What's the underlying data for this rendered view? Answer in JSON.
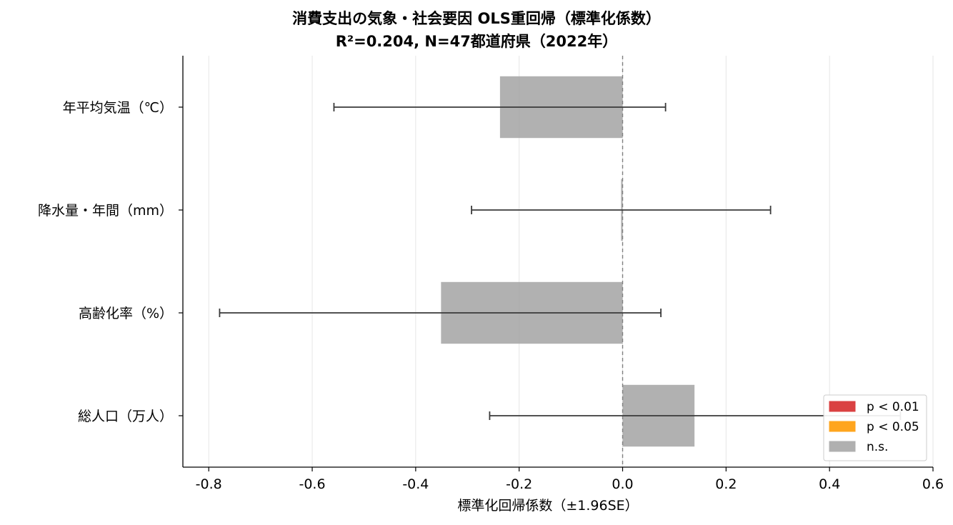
{
  "chart_data": {
    "type": "bar",
    "orientation": "horizontal",
    "title": "消費支出の気象・社会要因 OLS重回帰（標準化係数）",
    "subtitle": "R²=0.204, N=47都道府県（2022年）",
    "xlabel": "標準化回帰係数（±1.96SE）",
    "ylabel": "",
    "xlim": [
      -0.85,
      0.6
    ],
    "xticks": [
      -0.8,
      -0.6,
      -0.4,
      -0.2,
      0.0,
      0.2,
      0.4,
      0.6
    ],
    "xtick_labels": [
      "-0.8",
      "-0.6",
      "-0.4",
      "-0.2",
      "0.0",
      "0.2",
      "0.4",
      "0.6"
    ],
    "grid": "x",
    "reference_line": 0,
    "categories": [
      "年平均気温（℃）",
      "降水量・年間（mm）",
      "高齢化率（%）",
      "総人口（万人）"
    ],
    "values": [
      -0.237,
      -0.003,
      -0.351,
      0.139
    ],
    "ci_low": [
      -0.558,
      -0.292,
      -0.779,
      -0.257
    ],
    "ci_high": [
      0.083,
      0.286,
      0.074,
      0.537
    ],
    "significance": [
      "n.s.",
      "n.s.",
      "n.s.",
      "n.s."
    ],
    "legend": {
      "position": "lower right",
      "entries": [
        {
          "label": "p < 0.01",
          "color": "#d62728"
        },
        {
          "label": "p < 0.05",
          "color": "#ff9900"
        },
        {
          "label": "n.s.",
          "color": "#a6a6a6"
        }
      ]
    },
    "colors": {
      "p < 0.01": "#d62728",
      "p < 0.05": "#ff9900",
      "n.s.": "#a6a6a6"
    }
  }
}
